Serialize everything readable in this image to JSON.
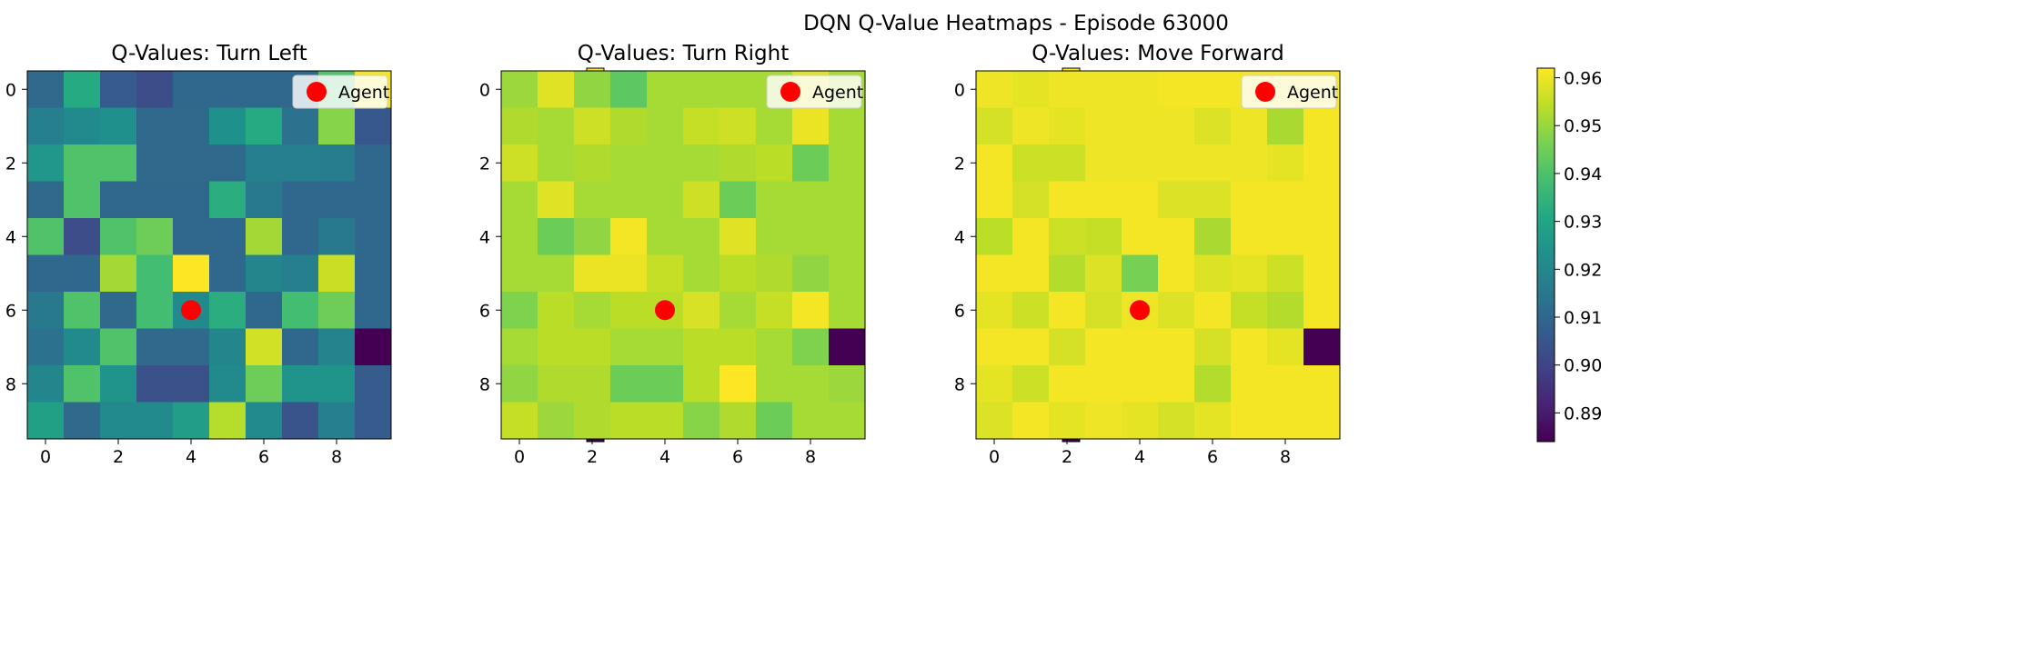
{
  "suptitle": "DQN Q-Value Heatmaps - Episode 63000",
  "colormap": "viridis",
  "agent_marker_color": "#ff0000",
  "chart_data": [
    {
      "type": "heatmap",
      "title": "Q-Values: Turn Left",
      "legend": {
        "label": "Agent",
        "placement": "top-right"
      },
      "agent": {
        "row": 6,
        "col": 4
      },
      "x_ticks": [
        0,
        2,
        4,
        6,
        8
      ],
      "y_ticks": [
        0,
        2,
        4,
        6,
        8
      ],
      "colorbar": {
        "min": 0.872,
        "max": 0.944,
        "ticks": [
          "0.88",
          "0.89",
          "0.90",
          "0.91",
          "0.92",
          "0.93",
          "0.94"
        ]
      },
      "values": [
        [
          0.897,
          0.916,
          0.893,
          0.889,
          0.896,
          0.896,
          0.896,
          0.896,
          0.924,
          0.943
        ],
        [
          0.903,
          0.906,
          0.908,
          0.897,
          0.897,
          0.908,
          0.916,
          0.899,
          0.931,
          0.892
        ],
        [
          0.91,
          0.924,
          0.924,
          0.897,
          0.897,
          0.897,
          0.903,
          0.903,
          0.902,
          0.896
        ],
        [
          0.897,
          0.924,
          0.896,
          0.896,
          0.896,
          0.917,
          0.901,
          0.896,
          0.896,
          0.896
        ],
        [
          0.924,
          0.889,
          0.924,
          0.928,
          0.896,
          0.896,
          0.934,
          0.896,
          0.901,
          0.896
        ],
        [
          0.896,
          0.896,
          0.934,
          0.922,
          0.944,
          0.896,
          0.905,
          0.903,
          0.938,
          0.896
        ],
        [
          0.901,
          0.924,
          0.897,
          0.922,
          0.906,
          0.917,
          0.896,
          0.922,
          0.928,
          0.896
        ],
        [
          0.899,
          0.906,
          0.924,
          0.897,
          0.897,
          0.905,
          0.939,
          0.896,
          0.904,
          0.872
        ],
        [
          0.905,
          0.924,
          0.909,
          0.89,
          0.89,
          0.906,
          0.928,
          0.909,
          0.909,
          0.893
        ],
        [
          0.913,
          0.897,
          0.906,
          0.906,
          0.912,
          0.936,
          0.906,
          0.891,
          0.903,
          0.893
        ]
      ]
    },
    {
      "type": "heatmap",
      "title": "Q-Values: Turn Right",
      "legend": {
        "label": "Agent",
        "placement": "top-right"
      },
      "agent": {
        "row": 6,
        "col": 4
      },
      "x_ticks": [
        0,
        2,
        4,
        6,
        8
      ],
      "y_ticks": [
        0,
        2,
        4,
        6,
        8
      ],
      "colorbar": {
        "min": 0.888,
        "max": 0.955,
        "ticks": [
          "0.89",
          "0.90",
          "0.91",
          "0.92",
          "0.93",
          "0.94",
          "0.95"
        ]
      },
      "values": [
        [
          0.945,
          0.952,
          0.944,
          0.938,
          0.946,
          0.946,
          0.946,
          0.946,
          0.952,
          0.946
        ],
        [
          0.947,
          0.946,
          0.95,
          0.947,
          0.946,
          0.949,
          0.95,
          0.946,
          0.953,
          0.946
        ],
        [
          0.95,
          0.946,
          0.947,
          0.946,
          0.946,
          0.946,
          0.947,
          0.948,
          0.94,
          0.946
        ],
        [
          0.946,
          0.952,
          0.946,
          0.946,
          0.946,
          0.95,
          0.94,
          0.946,
          0.946,
          0.946
        ],
        [
          0.946,
          0.94,
          0.944,
          0.954,
          0.946,
          0.946,
          0.952,
          0.946,
          0.946,
          0.946
        ],
        [
          0.946,
          0.946,
          0.953,
          0.953,
          0.949,
          0.946,
          0.948,
          0.947,
          0.944,
          0.946
        ],
        [
          0.942,
          0.948,
          0.946,
          0.948,
          0.948,
          0.951,
          0.946,
          0.949,
          0.954,
          0.946
        ],
        [
          0.946,
          0.948,
          0.948,
          0.946,
          0.946,
          0.948,
          0.948,
          0.946,
          0.942,
          0.888
        ],
        [
          0.944,
          0.947,
          0.947,
          0.94,
          0.94,
          0.948,
          0.955,
          0.946,
          0.946,
          0.945
        ],
        [
          0.949,
          0.945,
          0.947,
          0.948,
          0.948,
          0.943,
          0.947,
          0.94,
          0.946,
          0.946
        ]
      ]
    },
    {
      "type": "heatmap",
      "title": "Q-Values: Move Forward",
      "legend": {
        "label": "Agent",
        "placement": "top-right"
      },
      "agent": {
        "row": 6,
        "col": 4
      },
      "x_ticks": [
        0,
        2,
        4,
        6,
        8
      ],
      "y_ticks": [
        0,
        2,
        4,
        6,
        8
      ],
      "colorbar": {
        "min": 0.884,
        "max": 0.962,
        "ticks": [
          "0.89",
          "0.90",
          "0.91",
          "0.92",
          "0.93",
          "0.94",
          "0.95",
          "0.96"
        ]
      },
      "values": [
        [
          0.96,
          0.959,
          0.96,
          0.96,
          0.96,
          0.961,
          0.961,
          0.961,
          0.961,
          0.961
        ],
        [
          0.957,
          0.96,
          0.959,
          0.96,
          0.96,
          0.96,
          0.958,
          0.96,
          0.952,
          0.961
        ],
        [
          0.961,
          0.956,
          0.956,
          0.96,
          0.96,
          0.96,
          0.96,
          0.96,
          0.959,
          0.961
        ],
        [
          0.961,
          0.957,
          0.961,
          0.961,
          0.961,
          0.958,
          0.958,
          0.961,
          0.961,
          0.961
        ],
        [
          0.954,
          0.961,
          0.956,
          0.955,
          0.961,
          0.961,
          0.952,
          0.961,
          0.961,
          0.961
        ],
        [
          0.961,
          0.961,
          0.953,
          0.958,
          0.946,
          0.961,
          0.958,
          0.959,
          0.956,
          0.961
        ],
        [
          0.959,
          0.956,
          0.961,
          0.957,
          0.96,
          0.958,
          0.961,
          0.955,
          0.953,
          0.961
        ],
        [
          0.961,
          0.961,
          0.957,
          0.961,
          0.961,
          0.961,
          0.957,
          0.961,
          0.959,
          0.884
        ],
        [
          0.959,
          0.956,
          0.961,
          0.961,
          0.961,
          0.961,
          0.953,
          0.961,
          0.961,
          0.961
        ],
        [
          0.958,
          0.961,
          0.959,
          0.96,
          0.959,
          0.957,
          0.959,
          0.961,
          0.961,
          0.961
        ]
      ]
    }
  ]
}
